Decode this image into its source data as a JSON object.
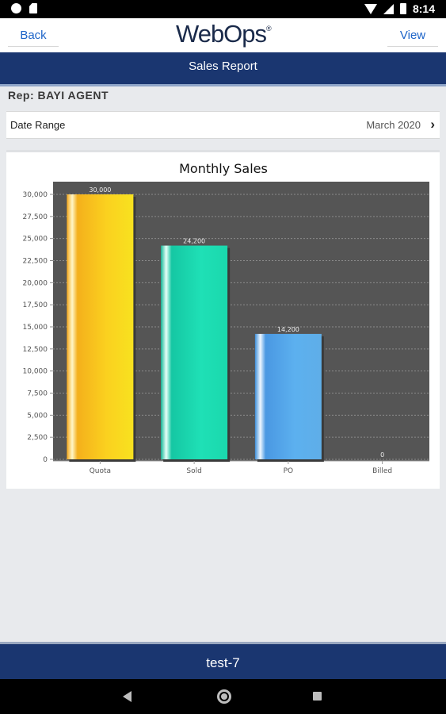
{
  "status_bar": {
    "time": "8:14"
  },
  "header": {
    "back_label": "Back",
    "logo_text": "WebOps",
    "view_label": "View"
  },
  "title_bar": {
    "title": "Sales Report"
  },
  "rep": {
    "label": "Rep: BAYI AGENT"
  },
  "date_range": {
    "label": "Date Range",
    "value": "March 2020"
  },
  "footer": {
    "text": "test-7"
  },
  "colors": {
    "navy": "#1a3670",
    "link_blue": "#1d64c8",
    "plot_bg": "#555555"
  },
  "chart_data": {
    "type": "bar",
    "title": "Monthly Sales",
    "categories": [
      "Quota",
      "Sold",
      "PO",
      "Billed"
    ],
    "values": [
      30000,
      24200,
      14200,
      0
    ],
    "value_labels": [
      "30,000",
      "24,200",
      "14,200",
      "0"
    ],
    "ylim": [
      0,
      30000
    ],
    "yticks": [
      "0",
      "2,500",
      "5,000",
      "7,500",
      "10,000",
      "12,500",
      "15,000",
      "17,500",
      "20,000",
      "22,500",
      "25,000",
      "27,500",
      "30,000"
    ],
    "grid": true,
    "bar_colors": [
      "#f7c51a",
      "#22d6b0",
      "#58a9ea",
      "#999999"
    ]
  }
}
